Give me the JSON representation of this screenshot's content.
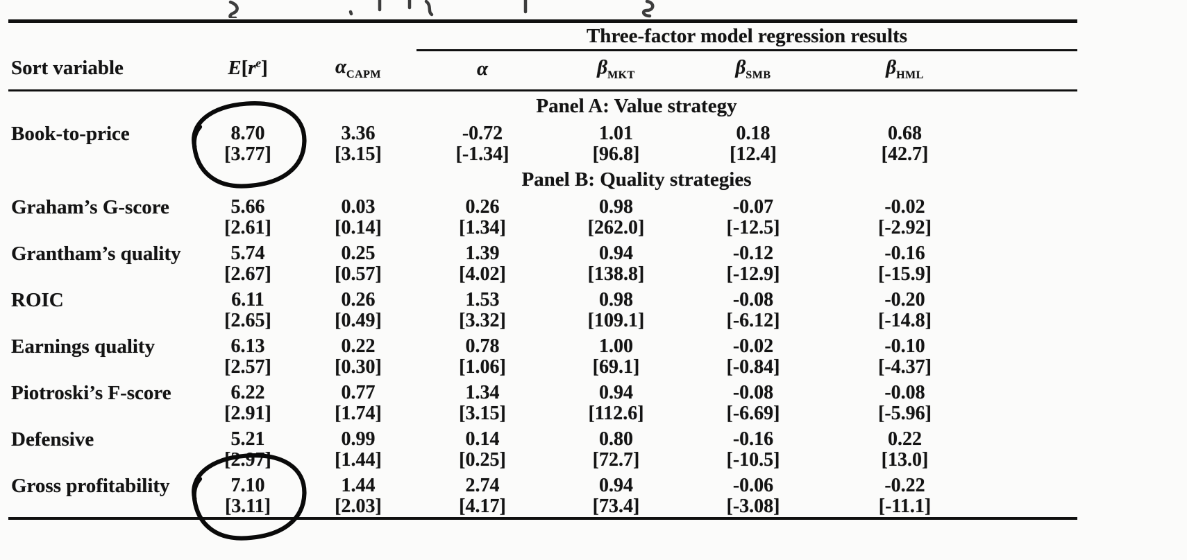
{
  "page": {
    "background": "#fbfbfa",
    "text_color": "#141414",
    "rule_color": "#101010"
  },
  "table": {
    "group_header": "Three-factor model regression results",
    "headers": {
      "sort_variable": "Sort variable",
      "er_E": "E",
      "er_open": "[",
      "er_r": "r",
      "er_sup": "e",
      "er_close": "]",
      "alpha": "α",
      "alpha_capm_sub": "CAPM",
      "beta": "β",
      "beta_mkt_sub": "MKT",
      "beta_smb_sub": "SMB",
      "beta_hml_sub": "HML"
    },
    "panels": [
      {
        "label": "Panel A: Value strategy",
        "rows": [
          {
            "name": "Book-to-price",
            "values": [
              "8.70",
              "3.36",
              "-0.72",
              "1.01",
              "0.18",
              "0.68"
            ],
            "tstats": [
              "[3.77]",
              "[3.15]",
              "[-1.34]",
              "[96.8]",
              "[12.4]",
              "[42.7]"
            ],
            "circled": [
              0
            ]
          }
        ]
      },
      {
        "label": "Panel B: Quality strategies",
        "rows": [
          {
            "name": "Graham’s G-score",
            "values": [
              "5.66",
              "0.03",
              "0.26",
              "0.98",
              "-0.07",
              "-0.02"
            ],
            "tstats": [
              "[2.61]",
              "[0.14]",
              "[1.34]",
              "[262.0]",
              "[-12.5]",
              "[-2.92]"
            ],
            "circled": []
          },
          {
            "name": "Grantham’s quality",
            "values": [
              "5.74",
              "0.25",
              "1.39",
              "0.94",
              "-0.12",
              "-0.16"
            ],
            "tstats": [
              "[2.67]",
              "[0.57]",
              "[4.02]",
              "[138.8]",
              "[-12.9]",
              "[-15.9]"
            ],
            "circled": []
          },
          {
            "name": "ROIC",
            "values": [
              "6.11",
              "0.26",
              "1.53",
              "0.98",
              "-0.08",
              "-0.20"
            ],
            "tstats": [
              "[2.65]",
              "[0.49]",
              "[3.32]",
              "[109.1]",
              "[-6.12]",
              "[-14.8]"
            ],
            "circled": []
          },
          {
            "name": "Earnings quality",
            "values": [
              "6.13",
              "0.22",
              "0.78",
              "1.00",
              "-0.02",
              "-0.10"
            ],
            "tstats": [
              "[2.57]",
              "[0.30]",
              "[1.06]",
              "[69.1]",
              "[-0.84]",
              "[-4.37]"
            ],
            "circled": []
          },
          {
            "name": "Piotroski’s F-score",
            "values": [
              "6.22",
              "0.77",
              "1.34",
              "0.94",
              "-0.08",
              "-0.08"
            ],
            "tstats": [
              "[2.91]",
              "[1.74]",
              "[3.15]",
              "[112.6]",
              "[-6.69]",
              "[-5.96]"
            ],
            "circled": []
          },
          {
            "name": "Defensive",
            "values": [
              "5.21",
              "0.99",
              "0.14",
              "0.80",
              "-0.16",
              "0.22"
            ],
            "tstats": [
              "[2.97]",
              "[1.44]",
              "[0.25]",
              "[72.7]",
              "[-10.5]",
              "[13.0]"
            ],
            "circled": []
          },
          {
            "name": "Gross profitability",
            "values": [
              "7.10",
              "1.44",
              "2.74",
              "0.94",
              "-0.06",
              "-0.22"
            ],
            "tstats": [
              "[3.11]",
              "[2.03]",
              "[4.17]",
              "[73.4]",
              "[-3.08]",
              "[-11.1]"
            ],
            "circled": [
              0
            ]
          }
        ]
      }
    ]
  },
  "annotations": {
    "ink_color": "#0a0a0a",
    "hand_circles": [
      {
        "around": "8.70 [3.77]"
      },
      {
        "around": "7.10 [3.11]"
      }
    ]
  }
}
